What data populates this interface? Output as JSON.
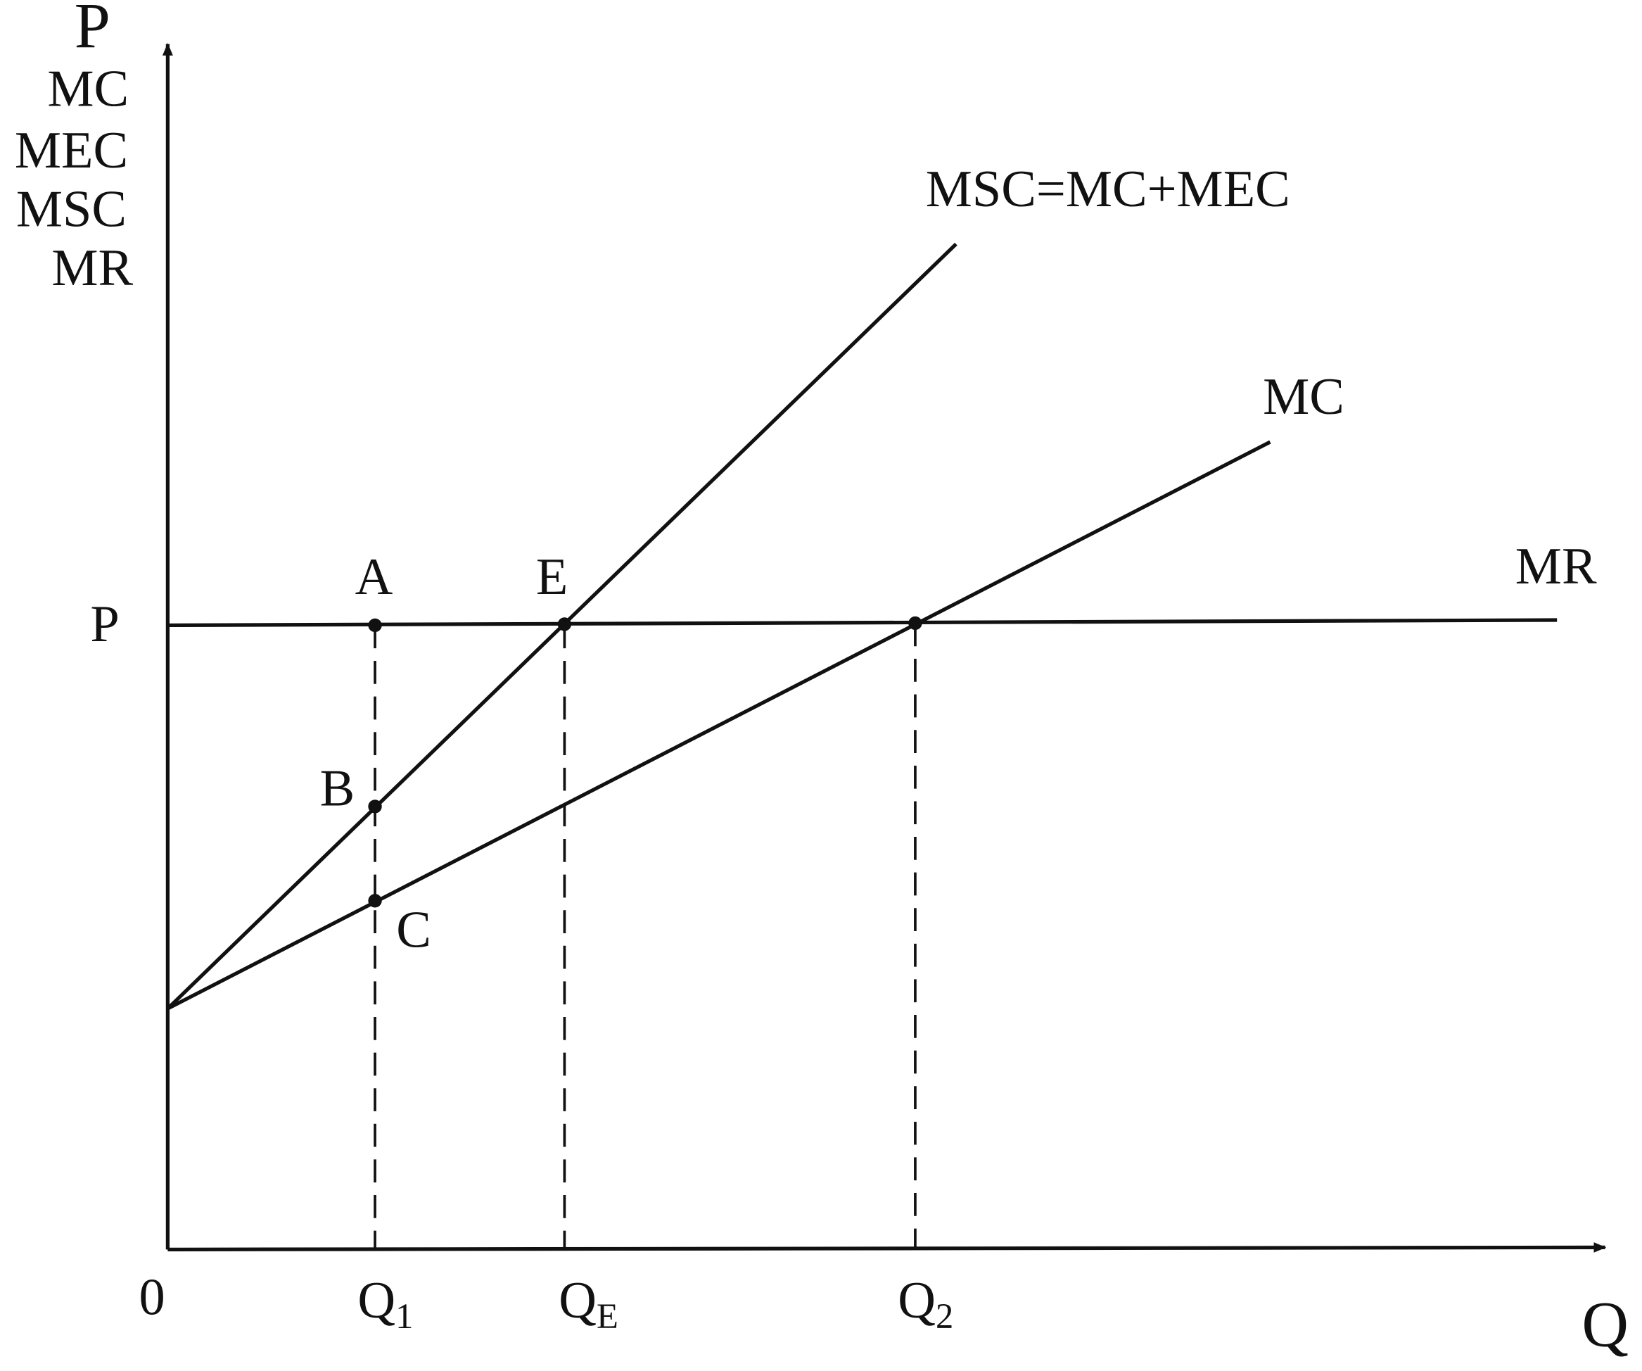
{
  "axes": {
    "y_label": [
      "P",
      "MC",
      "MEC",
      "MSC",
      "MR"
    ],
    "x_label": "Q",
    "origin": "0"
  },
  "curves": {
    "msc": "MSC=MC+MEC",
    "mc": "MC",
    "mr": "MR"
  },
  "price_label": "P",
  "points": {
    "a": "A",
    "e": "E",
    "b": "B",
    "c": "C"
  },
  "quantities": [
    {
      "main": "Q",
      "sub": "1"
    },
    {
      "main": "Q",
      "sub": "E"
    },
    {
      "main": "Q",
      "sub": "2"
    }
  ]
}
